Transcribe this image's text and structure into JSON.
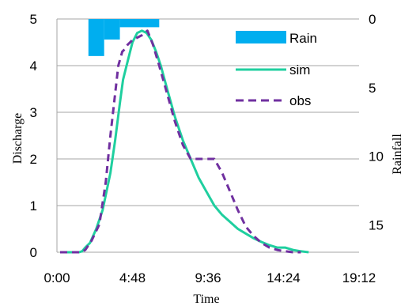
{
  "chart_data": {
    "type": "line",
    "xlabel": "Time",
    "ylabel_left": "Discharge",
    "ylabel_right": "Rainfall",
    "x_ticks": [
      "0:00",
      "4:48",
      "9:36",
      "14:24",
      "19:12"
    ],
    "x_tick_values_h": [
      0,
      4.8,
      9.6,
      14.4,
      19.2
    ],
    "xlim_h": [
      0,
      19.2
    ],
    "ylim_left": [
      0,
      5
    ],
    "y_ticks_left": [
      "0",
      "1",
      "2",
      "3",
      "4",
      "5"
    ],
    "y_tick_values_left": [
      0,
      1,
      2,
      3,
      4,
      5
    ],
    "ylim_right_inverted": [
      0,
      17
    ],
    "y_ticks_right": [
      "0",
      "5",
      "10",
      "15"
    ],
    "y_tick_values_right": [
      0,
      5,
      10,
      15
    ],
    "grid": "horizontal",
    "legend_position": "top-right",
    "colors": {
      "rain": "#00aeef",
      "sim": "#1fcf9f",
      "obs": "#7030a0"
    },
    "series": [
      {
        "name": "Rain",
        "kind": "bar",
        "axis": "right",
        "bars": [
          {
            "x_start_h": 2.0,
            "x_end_h": 3.0,
            "value": 2.7
          },
          {
            "x_start_h": 3.0,
            "x_end_h": 4.0,
            "value": 1.5
          },
          {
            "x_start_h": 4.0,
            "x_end_h": 6.5,
            "value": 0.6
          }
        ]
      },
      {
        "name": "sim",
        "kind": "line",
        "axis": "left",
        "x_h": [
          0.2,
          1.4,
          1.6,
          1.8,
          2.1,
          2.5,
          2.9,
          3.4,
          3.7,
          4.0,
          4.2,
          4.5,
          4.8,
          5.1,
          5.4,
          5.7,
          6.0,
          6.3,
          6.6,
          7.0,
          7.5,
          8.0,
          8.5,
          9.0,
          9.5,
          10.0,
          10.5,
          11.0,
          11.5,
          12.0,
          12.5,
          13.0,
          13.5,
          14.0,
          14.5,
          15.0,
          15.5,
          16.0
        ],
        "y": [
          0,
          0,
          0.02,
          0.1,
          0.2,
          0.5,
          0.9,
          1.7,
          2.4,
          3.2,
          3.7,
          4.1,
          4.5,
          4.7,
          4.75,
          4.7,
          4.55,
          4.3,
          4.0,
          3.5,
          2.9,
          2.4,
          2.0,
          1.6,
          1.3,
          1.0,
          0.8,
          0.65,
          0.5,
          0.4,
          0.3,
          0.22,
          0.15,
          0.1,
          0.1,
          0.05,
          0.02,
          0
        ]
      },
      {
        "name": "obs",
        "kind": "line",
        "axis": "left",
        "x_h": [
          0.2,
          1.5,
          1.8,
          2.2,
          2.7,
          3.1,
          3.4,
          3.7,
          3.9,
          4.15,
          4.3,
          4.5,
          4.8,
          5.1,
          5.4,
          5.75,
          6.1,
          6.5,
          7.0,
          7.5,
          8.0,
          8.5,
          9.0,
          9.5,
          10.0,
          10.5,
          11.0,
          11.5,
          12.0,
          12.5,
          13.0,
          13.5,
          14.0,
          14.5,
          15.0,
          15.5
        ],
        "y": [
          0,
          0,
          0.05,
          0.25,
          0.6,
          1.5,
          2.5,
          3.4,
          4.0,
          4.3,
          4.35,
          4.45,
          4.55,
          4.6,
          4.65,
          4.75,
          4.45,
          4.0,
          3.4,
          2.8,
          2.3,
          2.0,
          2.0,
          2.0,
          2.0,
          1.7,
          1.3,
          0.9,
          0.55,
          0.35,
          0.2,
          0.1,
          0.05,
          0.02,
          0,
          0
        ]
      }
    ]
  }
}
